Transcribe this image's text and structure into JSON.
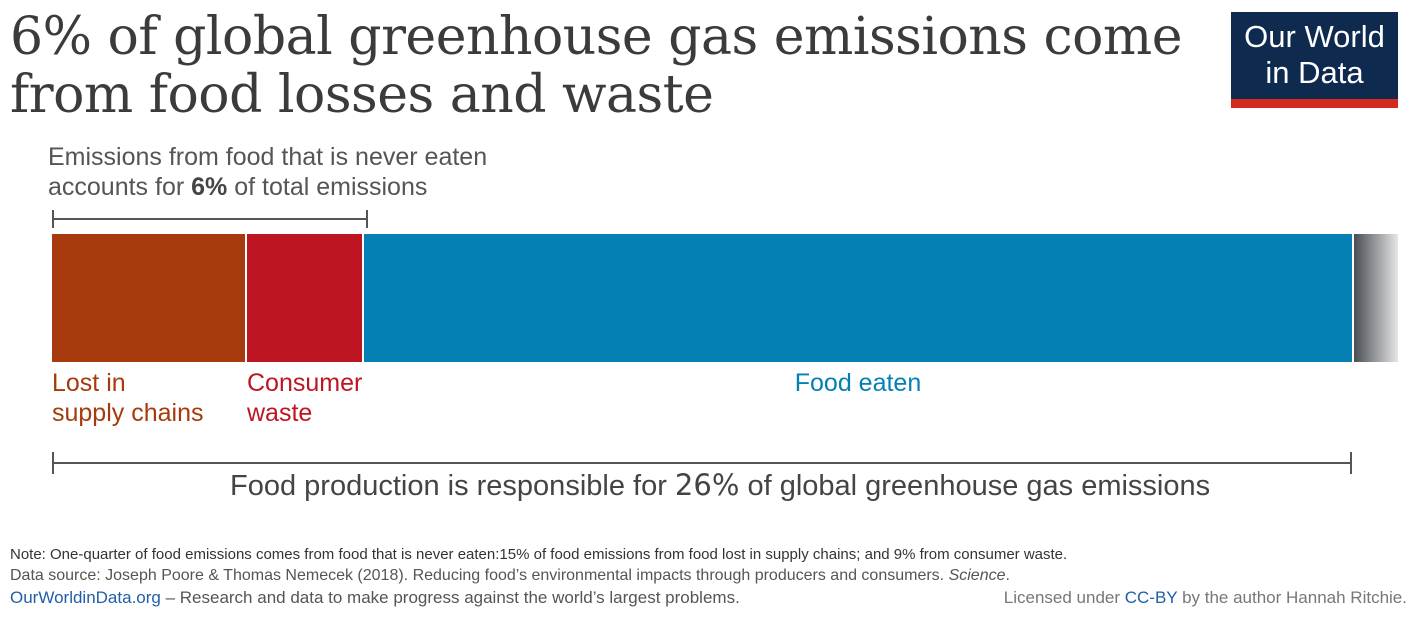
{
  "title": "6% of global greenhouse gas emissions come from food losses and waste",
  "logo": {
    "line1": "Our World",
    "line2": "in Data",
    "bg_color": "#0f2a4f",
    "accent_color": "#d42b21"
  },
  "callout_top": {
    "line1": "Emissions from food that is never eaten",
    "line2_prefix": "accounts for ",
    "line2_bold": "6%",
    "line2_suffix": " of total emissions"
  },
  "callout_bottom": {
    "prefix": "Food production is responsible for ",
    "bold": "26%",
    "suffix": " of global greenhouse gas emissions"
  },
  "chart_data": {
    "type": "bar",
    "orientation": "horizontal-stacked",
    "unit": "% of food emissions",
    "segments": [
      {
        "label_line1": "Lost in",
        "label_line2": "supply chains",
        "value": 15,
        "color": "#a63a0c"
      },
      {
        "label_line1": "Consumer",
        "label_line2": "waste",
        "value": 9,
        "color": "#be1522"
      },
      {
        "label_line1": "Food eaten",
        "label_line2": "",
        "value": 76,
        "color": "#0480b5"
      }
    ],
    "fade_tail": true
  },
  "footer": {
    "note": "Note: One-quarter of food emissions comes from food that is never eaten:15% of food emissions from food lost in supply chains; and 9% from consumer waste.",
    "source_prefix": "Data source: Joseph Poore & Thomas Nemecek (2018). Reducing food’s environmental impacts through producers and consumers. ",
    "source_journal": "Science",
    "source_suffix": ".",
    "site_link": "OurWorldinData.org",
    "site_text": " – Research and data to make progress against the world’s largest problems.",
    "license_prefix": "Licensed under ",
    "license_link": "CC-BY",
    "license_suffix": " by the author Hannah Ritchie."
  }
}
